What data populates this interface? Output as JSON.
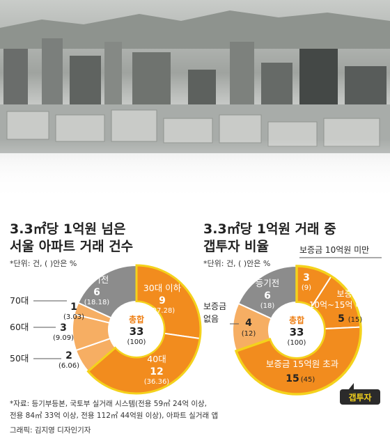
{
  "left": {
    "title_line1": "3.3㎡당 1억원 넘은",
    "title_line2": "서울 아파트 거래 건수",
    "unit": "*단위: 건, ( )안은 %",
    "total_label": "총합",
    "total_value": "33",
    "total_pct": "(100)"
  },
  "right": {
    "title_line1": "3.3㎡당 1억원 거래 중",
    "title_line2": "갭투자 비율",
    "unit": "*단위: 건, ( )안은 %",
    "total_label": "총합",
    "total_value": "33",
    "total_pct": "(100)",
    "callout": "갭투자"
  },
  "footnotes": {
    "line1": "*자료: 등기부등본, 국토부 실거래 시스템(전용 59㎡ 24억 이상,",
    "line2": "전용 84㎡ 33억 이상, 전용 112㎡ 44억원 이상), 아파트 실거래 앱",
    "line3": "그래픽: 김지영 디자인기자"
  },
  "chart_data": [
    {
      "type": "pie",
      "title": "3.3㎡당 1억원 넘은 서울 아파트 거래 건수",
      "unit": "건",
      "categories": [
        "30대 이하",
        "40대",
        "50대",
        "60대",
        "70대",
        "등기전"
      ],
      "values": [
        9,
        12,
        2,
        3,
        1,
        6
      ],
      "percents": [
        "27.28",
        "36.36",
        "6.06",
        "9.09",
        "3.03",
        "18.18"
      ],
      "total": 33,
      "colors": [
        "#f28c1e",
        "#f28c1e",
        "#f6ae63",
        "#f6ae63",
        "#f6ae63",
        "#8c8c8c"
      ]
    },
    {
      "type": "pie",
      "title": "3.3㎡당 1억원 거래 중 갭투자 비율",
      "unit": "건",
      "categories": [
        "보증금 10억원 미만",
        "보증금 10억~15억 미만",
        "보증금 15억원 초과",
        "보증금 없음",
        "등기전"
      ],
      "values": [
        3,
        5,
        15,
        4,
        6
      ],
      "percents": [
        "9",
        "15",
        "45",
        "12",
        "18"
      ],
      "total": 33,
      "highlighted": [
        "보증금 10억원 미만",
        "보증금 10억~15억 미만",
        "보증금 15억원 초과"
      ],
      "colors": [
        "#f28c1e",
        "#f28c1e",
        "#f28c1e",
        "#f6ae63",
        "#8c8c8c"
      ]
    }
  ]
}
